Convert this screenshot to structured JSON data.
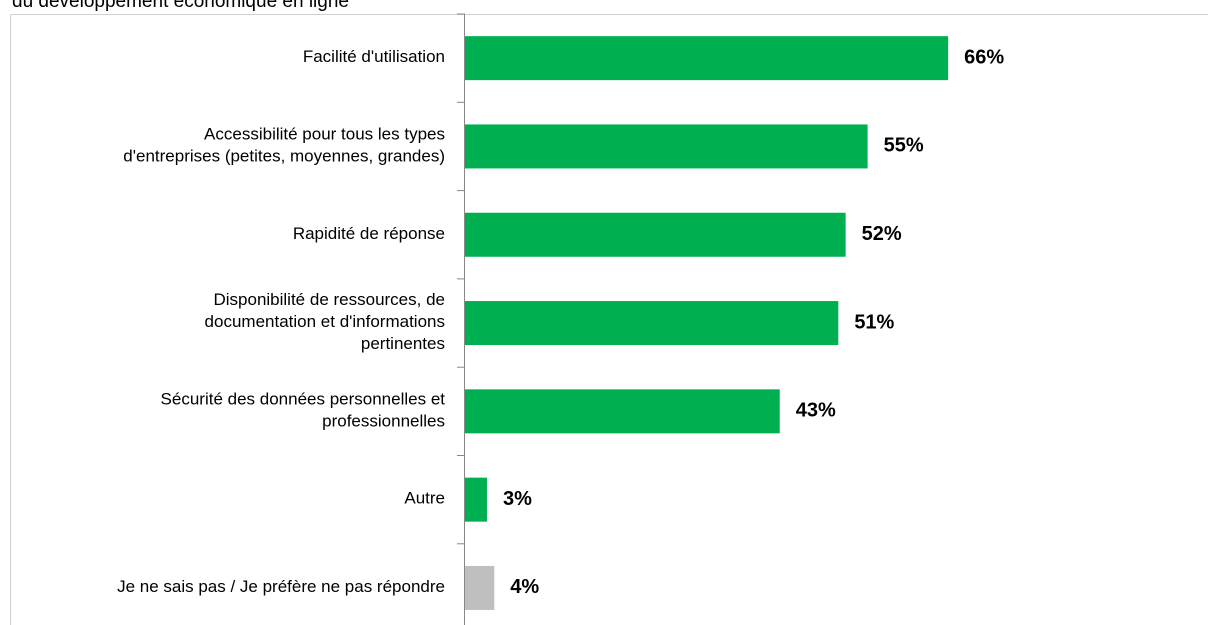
{
  "chart_data": {
    "type": "barh",
    "title": "du développement économique en ligne",
    "categories": [
      "Facilité d'utilisation",
      "Accessibilité pour tous les types\nd'entreprises (petites, moyennes, grandes)",
      "Rapidité de réponse",
      "Disponibilité de ressources, de\ndocumentation et d'informations\npertinentes",
      "Sécurité des données personnelles et\nprofessionnelles",
      "Autre",
      "Je ne sais pas / Je préfère ne pas répondre"
    ],
    "values": [
      66,
      55,
      52,
      51,
      43,
      3,
      4
    ],
    "value_labels": [
      "66%",
      "55%",
      "52%",
      "51%",
      "43%",
      "3%",
      "4%"
    ],
    "colors": [
      "#00b050",
      "#00b050",
      "#00b050",
      "#00b050",
      "#00b050",
      "#00b050",
      "#bfbfbf"
    ],
    "xlim": [
      0,
      100
    ]
  }
}
